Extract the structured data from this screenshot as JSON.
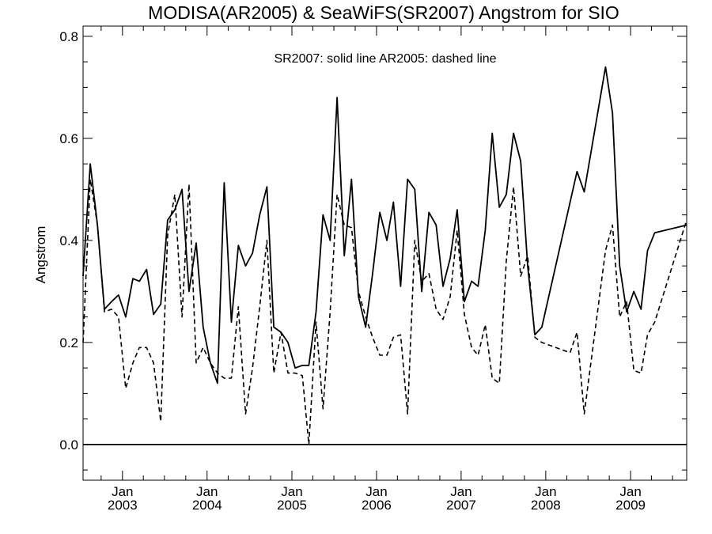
{
  "chart_data": {
    "type": "line",
    "title": "MODISA(AR2005) & SeaWiFS(SR2007)  Angstrom for SIO",
    "annotation": "SR2007: solid line   AR2005: dashed line",
    "xlabel": "",
    "ylabel": "Angstrom",
    "ylim": [
      -0.07,
      0.82
    ],
    "xlim": [
      "2002-07-15",
      "2009-08-31"
    ],
    "y_ticks": [
      0.0,
      0.2,
      0.4,
      0.6,
      0.8
    ],
    "y_tick_labels": [
      "0.0",
      "0.2",
      "0.4",
      "0.6",
      "0.8"
    ],
    "x_ticks": [
      {
        "date": "2003-01-01",
        "month": "Jan",
        "year": "2003"
      },
      {
        "date": "2004-01-01",
        "month": "Jan",
        "year": "2004"
      },
      {
        "date": "2005-01-01",
        "month": "Jan",
        "year": "2005"
      },
      {
        "date": "2006-01-01",
        "month": "Jan",
        "year": "2006"
      },
      {
        "date": "2007-01-01",
        "month": "Jan",
        "year": "2007"
      },
      {
        "date": "2008-01-01",
        "month": "Jan",
        "year": "2008"
      },
      {
        "date": "2009-01-01",
        "month": "Jan",
        "year": "2009"
      }
    ],
    "zero_line": 0.0,
    "grid": false,
    "series": [
      {
        "name": "SR2007",
        "style": "solid",
        "x": [
          "2002-07-15",
          "2002-08-15",
          "2002-09-15",
          "2002-10-15",
          "2002-11-15",
          "2002-12-15",
          "2003-01-15",
          "2003-02-15",
          "2003-03-15",
          "2003-04-15",
          "2003-05-15",
          "2003-06-15",
          "2003-07-15",
          "2003-08-15",
          "2003-09-15",
          "2003-10-15",
          "2003-11-15",
          "2003-12-15",
          "2004-01-15",
          "2004-02-15",
          "2004-03-15",
          "2004-04-15",
          "2004-05-15",
          "2004-06-15",
          "2004-07-15",
          "2004-08-15",
          "2004-09-15",
          "2004-10-15",
          "2004-11-15",
          "2004-12-15",
          "2005-01-15",
          "2005-02-15",
          "2005-03-15",
          "2005-04-15",
          "2005-05-15",
          "2005-06-15",
          "2005-07-15",
          "2005-08-15",
          "2005-09-15",
          "2005-10-15",
          "2005-11-15",
          "2005-12-15",
          "2006-01-15",
          "2006-02-15",
          "2006-03-15",
          "2006-04-15",
          "2006-05-15",
          "2006-06-15",
          "2006-07-15",
          "2006-08-15",
          "2006-09-15",
          "2006-10-15",
          "2006-11-15",
          "2006-12-15",
          "2007-01-15",
          "2007-02-15",
          "2007-03-15",
          "2007-04-15",
          "2007-05-15",
          "2007-06-15",
          "2007-07-15",
          "2007-08-15",
          "2007-09-15",
          "2007-10-15",
          "2007-11-15",
          "2007-12-15",
          "2008-05-15",
          "2008-06-15",
          "2008-09-15",
          "2008-10-15",
          "2008-11-15",
          "2008-12-15",
          "2009-01-15",
          "2009-02-15",
          "2009-03-15",
          "2009-04-15",
          "2009-08-31"
        ],
        "y": [
          0.33,
          0.55,
          0.43,
          0.265,
          0.28,
          0.293,
          0.25,
          0.325,
          0.32,
          0.343,
          0.255,
          0.275,
          0.44,
          0.46,
          0.5,
          0.3,
          0.395,
          0.23,
          0.16,
          0.12,
          0.513,
          0.24,
          0.39,
          0.35,
          0.375,
          0.45,
          0.505,
          0.23,
          0.22,
          0.2,
          0.15,
          0.155,
          0.155,
          0.26,
          0.45,
          0.4,
          0.68,
          0.37,
          0.52,
          0.29,
          0.23,
          0.335,
          0.455,
          0.4,
          0.475,
          0.31,
          0.52,
          0.5,
          0.3,
          0.455,
          0.43,
          0.31,
          0.365,
          0.46,
          0.28,
          0.32,
          0.31,
          0.42,
          0.61,
          0.465,
          0.49,
          0.61,
          0.555,
          0.35,
          0.215,
          0.23,
          0.535,
          0.495,
          0.74,
          0.65,
          0.35,
          0.26,
          0.3,
          0.265,
          0.38,
          0.415,
          0.43
        ]
      },
      {
        "name": "AR2005",
        "style": "dashed",
        "x": [
          "2002-07-15",
          "2002-08-15",
          "2002-09-15",
          "2002-10-15",
          "2002-11-15",
          "2002-12-15",
          "2003-01-15",
          "2003-02-15",
          "2003-03-15",
          "2003-04-15",
          "2003-05-15",
          "2003-06-15",
          "2003-07-15",
          "2003-08-15",
          "2003-09-15",
          "2003-10-15",
          "2003-11-15",
          "2003-12-15",
          "2004-01-15",
          "2004-02-15",
          "2004-03-15",
          "2004-04-15",
          "2004-05-15",
          "2004-06-15",
          "2004-07-15",
          "2004-08-15",
          "2004-09-15",
          "2004-10-15",
          "2004-11-15",
          "2004-12-15",
          "2005-01-15",
          "2005-02-15",
          "2005-03-15",
          "2005-04-15",
          "2005-05-15",
          "2005-06-15",
          "2005-07-15",
          "2005-08-15",
          "2005-09-15",
          "2005-10-15",
          "2005-11-15",
          "2005-12-15",
          "2006-01-15",
          "2006-02-15",
          "2006-03-15",
          "2006-04-15",
          "2006-05-15",
          "2006-06-15",
          "2006-07-15",
          "2006-08-15",
          "2006-09-15",
          "2006-10-15",
          "2006-11-15",
          "2006-12-15",
          "2007-01-15",
          "2007-02-15",
          "2007-03-15",
          "2007-04-15",
          "2007-05-15",
          "2007-06-15",
          "2007-07-15",
          "2007-08-15",
          "2007-09-15",
          "2007-10-15",
          "2007-11-15",
          "2007-12-15",
          "2008-04-15",
          "2008-05-15",
          "2008-06-15",
          "2008-09-15",
          "2008-10-15",
          "2008-11-15",
          "2008-12-15",
          "2009-01-15",
          "2009-02-15",
          "2009-03-15",
          "2009-04-15",
          "2009-08-31"
        ],
        "y": [
          0.2,
          0.52,
          0.43,
          0.26,
          0.265,
          0.25,
          0.11,
          0.16,
          0.19,
          0.19,
          0.16,
          0.045,
          0.41,
          0.49,
          0.25,
          0.51,
          0.16,
          0.19,
          0.16,
          0.14,
          0.13,
          0.13,
          0.27,
          0.06,
          0.15,
          0.27,
          0.4,
          0.14,
          0.22,
          0.14,
          0.14,
          0.135,
          0.0,
          0.24,
          0.07,
          0.26,
          0.49,
          0.43,
          0.425,
          0.3,
          0.25,
          0.21,
          0.175,
          0.175,
          0.21,
          0.215,
          0.06,
          0.4,
          0.32,
          0.335,
          0.265,
          0.245,
          0.29,
          0.42,
          0.255,
          0.19,
          0.175,
          0.235,
          0.13,
          0.12,
          0.36,
          0.505,
          0.33,
          0.37,
          0.21,
          0.2,
          0.18,
          0.22,
          0.06,
          0.38,
          0.43,
          0.25,
          0.28,
          0.145,
          0.14,
          0.215,
          0.24,
          0.44
        ]
      }
    ]
  }
}
